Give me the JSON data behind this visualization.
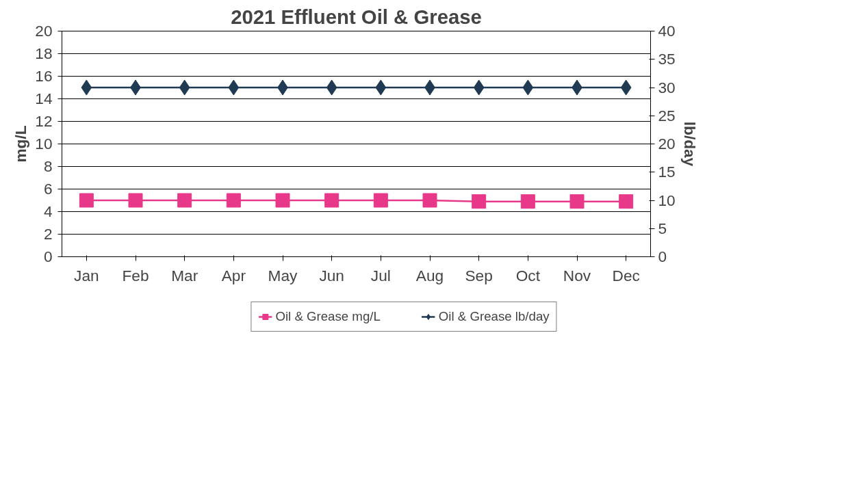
{
  "chart_data": {
    "type": "line",
    "title": "2021 Effluent Oil & Grease",
    "ylabel": "mg/L",
    "y2label": "lb/day",
    "categories": [
      "Jan",
      "Feb",
      "Mar",
      "Apr",
      "May",
      "Jun",
      "Jul",
      "Aug",
      "Sep",
      "Oct",
      "Nov",
      "Dec"
    ],
    "series": [
      {
        "name": "Oil & Grease mg/L",
        "color": "#e8388a",
        "marker": "square",
        "values": [
          5,
          5,
          5,
          5,
          5,
          5,
          5,
          5,
          4.9,
          4.9,
          4.9,
          4.9
        ]
      },
      {
        "name": "Oil & Grease lb/day",
        "color": "#1f3a52",
        "marker": "diamond",
        "axis": "y2",
        "values": [
          30,
          30,
          30,
          30,
          30,
          30,
          30,
          30,
          30,
          30,
          30,
          30
        ]
      }
    ],
    "ylim": [
      0,
      20
    ],
    "yticks": [
      0,
      2,
      4,
      6,
      8,
      10,
      12,
      14,
      16,
      18,
      20
    ],
    "y2lim": [
      0,
      40
    ],
    "y2ticks": [
      0,
      5,
      10,
      15,
      20,
      25,
      30,
      35,
      40
    ],
    "grid": "y",
    "legend": "bottom",
    "line_style": "solid"
  }
}
